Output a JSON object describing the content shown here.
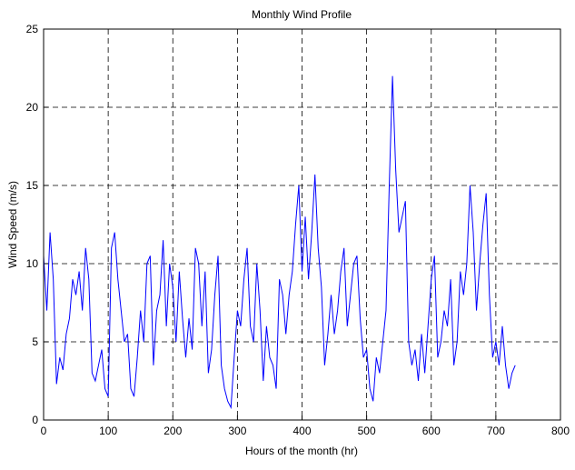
{
  "chart_data": {
    "type": "line",
    "title": "Monthly Wind Profile",
    "xlabel": "Hours of the month (hr)",
    "ylabel": "Wind Speed (m/s)",
    "x": [
      0,
      5,
      10,
      15,
      20,
      25,
      30,
      35,
      40,
      45,
      50,
      55,
      60,
      65,
      70,
      75,
      80,
      85,
      90,
      95,
      100,
      105,
      110,
      115,
      120,
      125,
      130,
      135,
      140,
      145,
      150,
      155,
      160,
      165,
      170,
      175,
      180,
      185,
      190,
      195,
      200,
      205,
      210,
      215,
      220,
      225,
      230,
      235,
      240,
      245,
      250,
      255,
      260,
      265,
      270,
      275,
      280,
      285,
      290,
      295,
      300,
      305,
      310,
      315,
      320,
      325,
      330,
      335,
      340,
      345,
      350,
      355,
      360,
      365,
      370,
      375,
      380,
      385,
      390,
      395,
      400,
      405,
      410,
      415,
      420,
      425,
      430,
      435,
      440,
      445,
      450,
      455,
      460,
      465,
      470,
      475,
      480,
      485,
      490,
      495,
      500,
      505,
      510,
      515,
      520,
      525,
      530,
      535,
      540,
      545,
      550,
      555,
      560,
      565,
      570,
      575,
      580,
      585,
      590,
      595,
      600,
      605,
      610,
      615,
      620,
      625,
      630,
      635,
      640,
      645,
      650,
      655,
      660,
      665,
      670,
      675,
      680,
      685,
      690,
      695,
      700,
      705,
      710,
      715,
      720,
      725,
      730
    ],
    "series": [
      {
        "name": "Wind Speed",
        "color": "#0000ff",
        "values": [
          10.5,
          7,
          12,
          9,
          2.3,
          4,
          3.2,
          5.5,
          6.5,
          9,
          8,
          9.5,
          7,
          11,
          9,
          3,
          2.5,
          3.5,
          4.5,
          2,
          1.5,
          11,
          12,
          9,
          7,
          5,
          5.5,
          2,
          1.5,
          4,
          7,
          5,
          10,
          10.5,
          3.5,
          7,
          8,
          11.5,
          6,
          10,
          8.5,
          5,
          9.5,
          6.5,
          4,
          6.5,
          4.5,
          11,
          10,
          6,
          9.5,
          3,
          4.5,
          8,
          10.5,
          3.5,
          2,
          1.2,
          0.8,
          4,
          7,
          6,
          9,
          11,
          6,
          5,
          10,
          7,
          2.5,
          6,
          4,
          3.5,
          2,
          9,
          8,
          5.5,
          8,
          9.5,
          12.5,
          15,
          9.5,
          13,
          9,
          12,
          15.7,
          11,
          8.5,
          3.5,
          5.5,
          8,
          5.5,
          7,
          9.5,
          11,
          6,
          8,
          10,
          10.5,
          6.5,
          4,
          4.5,
          2,
          1.2,
          4,
          3,
          5,
          7,
          15,
          22,
          16,
          12,
          13,
          14,
          5,
          3.5,
          4.5,
          2.5,
          5.5,
          3,
          6,
          9,
          10.5,
          4,
          5,
          7,
          6,
          9,
          3.5,
          5,
          9.5,
          8,
          10,
          15,
          12,
          7,
          10,
          12.5,
          14.5,
          8,
          4,
          5,
          3.5,
          6,
          3.5,
          2,
          3,
          3.5
        ]
      }
    ],
    "xlim": [
      0,
      800
    ],
    "xticks": [
      0,
      100,
      200,
      300,
      400,
      500,
      600,
      700,
      800
    ],
    "ylim": [
      0,
      25
    ],
    "yticks": [
      0,
      5,
      10,
      15,
      20,
      25
    ],
    "grid": true
  }
}
